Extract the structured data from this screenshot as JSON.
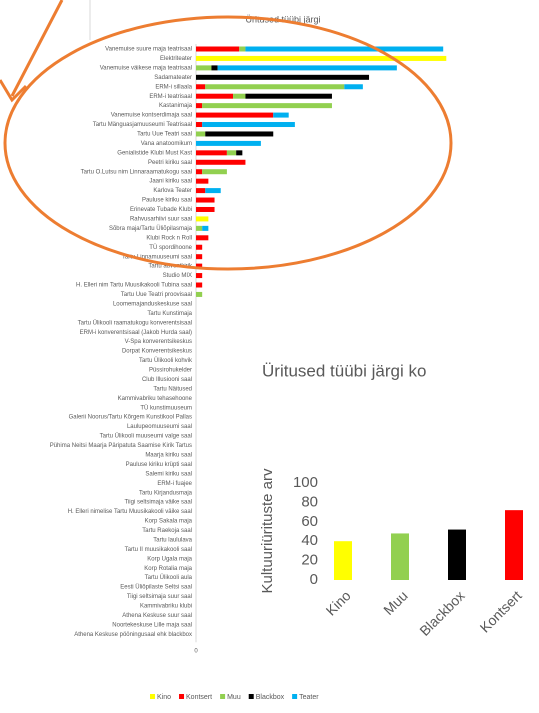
{
  "chart_data": [
    {
      "type": "bar",
      "orientation": "horizontal",
      "stacked": true,
      "title": "Üritused tüübi järgi",
      "categories": [
        "Vanemuise suure maja teatrisaal",
        "Elektriteater",
        "Vanemuise väikese maja teatrisaal",
        "Sadamateater",
        "ERM-i sillaala",
        "ERM-i teatrisaal",
        "Kastanimaja",
        "Vanemuise kontserdimaja saal",
        "Tartu Mänguasjamuuseumi Teatrisaal",
        "Tartu Uue Teatri saal",
        "Vana anatoomikum",
        "Genialistide Klubi Must Kast",
        "Peetri kiriku saal",
        "Tartu O.Lutsu nim Linnaraamatukogu saal",
        "Jaani kiriku saal",
        "Karlova Teater",
        "Pauluse kiriku saal",
        "Erinevate Tubade Klubi",
        "Rahvusarhiivi suur saal",
        "Sõbra maja/Tartu Üliõpilasmaja",
        "Klubi Rock n Roll",
        "TÜ spordihoone",
        "Tartu Linnamuuseumi saal",
        "Tartu adventkirik",
        "Studio MIX",
        "H. Elleri nim Tartu Muusikakooli Tubina saal",
        "Tartu Uue Teatri proovisaal",
        "Loomemajanduskeskuse saal",
        "Tartu Kunstimaja",
        "Tartu Ülikooli raamatukogu konverentsisaal",
        "ERM-i konverentsisaal (Jakob Hurda saal)",
        "V-Spa konverentsikeskus",
        "Dorpat Konverentsikeskus",
        "Tartu Ülikooli kohvik",
        "Püssirohukelder",
        "Club Illusiooni saal",
        "Tartu Näitused",
        "Kammivabriku tehasehoone",
        "TÜ kunstimuuseum",
        "Galerii Noorus/Tartu Kõrgem Kunstikool Pallas",
        "Laulupeomuuseumi saal",
        "Tartu Ülikooli muuseumi valge saal",
        "Pühima Neitsi Maarja Päripatuta Saamise Kirik Tartus",
        "Maarja kiriku saal",
        "Pauluse kiriku krüpti saal",
        "Salemi kiriku saal",
        "ERM-i fuajee",
        "Tartu Kirjandusmaja",
        "Tiigi seltsimaja väike saal",
        "H. Elleri nimelise Tartu Muusikakooli väike saal",
        "Korp Sakala maja",
        "Tartu Raekoja saal",
        "Tartu laululava",
        "Tartu II muusikakooli saal",
        "Korp Ugala maja",
        "Korp Rotalia maja",
        "Tartu Ülikooli aula",
        "Eesti Üliõpilaste Seltsi saal",
        "Tiigi seltsimaja suur saal",
        "Kammivabriku klubi",
        "Athena Keskuse suur saal",
        "Noortekeskuse Lille maja saal",
        "Athena Keskuse pööningusaal ehk blackbox"
      ],
      "series": [
        {
          "name": "Kino",
          "color": "#ffff00",
          "values": [
            0,
            81,
            0,
            0,
            0,
            0,
            0,
            0,
            0,
            0,
            0,
            0,
            0,
            0,
            0,
            0,
            0,
            0,
            4,
            0,
            0,
            0,
            0,
            0,
            0,
            0,
            0,
            0,
            0,
            0,
            0,
            0,
            0,
            0,
            0,
            0,
            0,
            0,
            0,
            0,
            0,
            0,
            0,
            0,
            0,
            0,
            0,
            0,
            0,
            0,
            0,
            0,
            0,
            0,
            0,
            0,
            0,
            0,
            0,
            0,
            0,
            0,
            0
          ]
        },
        {
          "name": "Kontsert",
          "color": "#ff0000",
          "values": [
            14,
            0,
            0,
            0,
            3,
            12,
            2,
            25,
            2,
            0,
            0,
            10,
            16,
            2,
            4,
            3,
            6,
            6,
            0,
            0,
            4,
            2,
            2,
            2,
            2,
            2,
            0,
            0,
            0,
            0,
            0,
            0,
            0,
            0,
            0,
            0,
            0,
            0,
            0,
            0,
            0,
            0,
            0,
            0,
            0,
            0,
            0,
            0,
            0,
            0,
            0,
            0,
            0,
            0,
            0,
            0,
            0,
            0,
            0,
            0,
            0,
            0,
            0
          ]
        },
        {
          "name": "Muu",
          "color": "#92d050",
          "values": [
            2,
            0,
            5,
            0,
            45,
            4,
            42,
            0,
            0,
            3,
            0,
            3,
            0,
            8,
            0,
            0,
            0,
            0,
            0,
            2,
            0,
            0,
            0,
            0,
            0,
            0,
            2,
            0,
            0,
            0,
            0,
            0,
            0,
            0,
            0,
            0,
            0,
            0,
            0,
            0,
            0,
            0,
            0,
            0,
            0,
            0,
            0,
            0,
            0,
            0,
            0,
            0,
            0,
            0,
            0,
            0,
            0,
            0,
            0,
            0,
            0,
            0,
            0
          ]
        },
        {
          "name": "Blackbox",
          "color": "#000000",
          "values": [
            0,
            0,
            2,
            56,
            0,
            28,
            0,
            0,
            0,
            22,
            0,
            2,
            0,
            0,
            0,
            0,
            0,
            0,
            0,
            0,
            0,
            0,
            0,
            0,
            0,
            0,
            0,
            0,
            0,
            0,
            0,
            0,
            0,
            0,
            0,
            0,
            0,
            0,
            0,
            0,
            0,
            0,
            0,
            0,
            0,
            0,
            0,
            0,
            0,
            0,
            0,
            0,
            0,
            0,
            0,
            0,
            0,
            0,
            0,
            0,
            0,
            0,
            0
          ]
        },
        {
          "name": "Teater",
          "color": "#00b0f0",
          "values": [
            64,
            0,
            58,
            0,
            6,
            0,
            0,
            5,
            30,
            0,
            21,
            0,
            0,
            0,
            0,
            5,
            0,
            0,
            0,
            2,
            0,
            0,
            0,
            0,
            0,
            0,
            0,
            0,
            0,
            0,
            0,
            0,
            0,
            0,
            0,
            0,
            0,
            0,
            0,
            0,
            0,
            0,
            0,
            0,
            0,
            0,
            0,
            0,
            0,
            0,
            0,
            0,
            0,
            0,
            0,
            0,
            0,
            0,
            0,
            0,
            0,
            0,
            0
          ]
        }
      ],
      "xlim": [
        0,
        100
      ],
      "xticks": [
        0
      ],
      "legend": "bottom"
    },
    {
      "type": "bar",
      "title": "Üritused tüübi järgi ko",
      "ylabel": "Kultuuriürituste arv",
      "categories": [
        "Kino",
        "Muu",
        "Blackbox",
        "Kontsert"
      ],
      "values": [
        40,
        48,
        52,
        72
      ],
      "colors": [
        "#ffff00",
        "#92d050",
        "#000000",
        "#ff0000"
      ],
      "ylim": [
        0,
        100
      ],
      "yticks": [
        0,
        20,
        40,
        60,
        80,
        100
      ]
    }
  ]
}
